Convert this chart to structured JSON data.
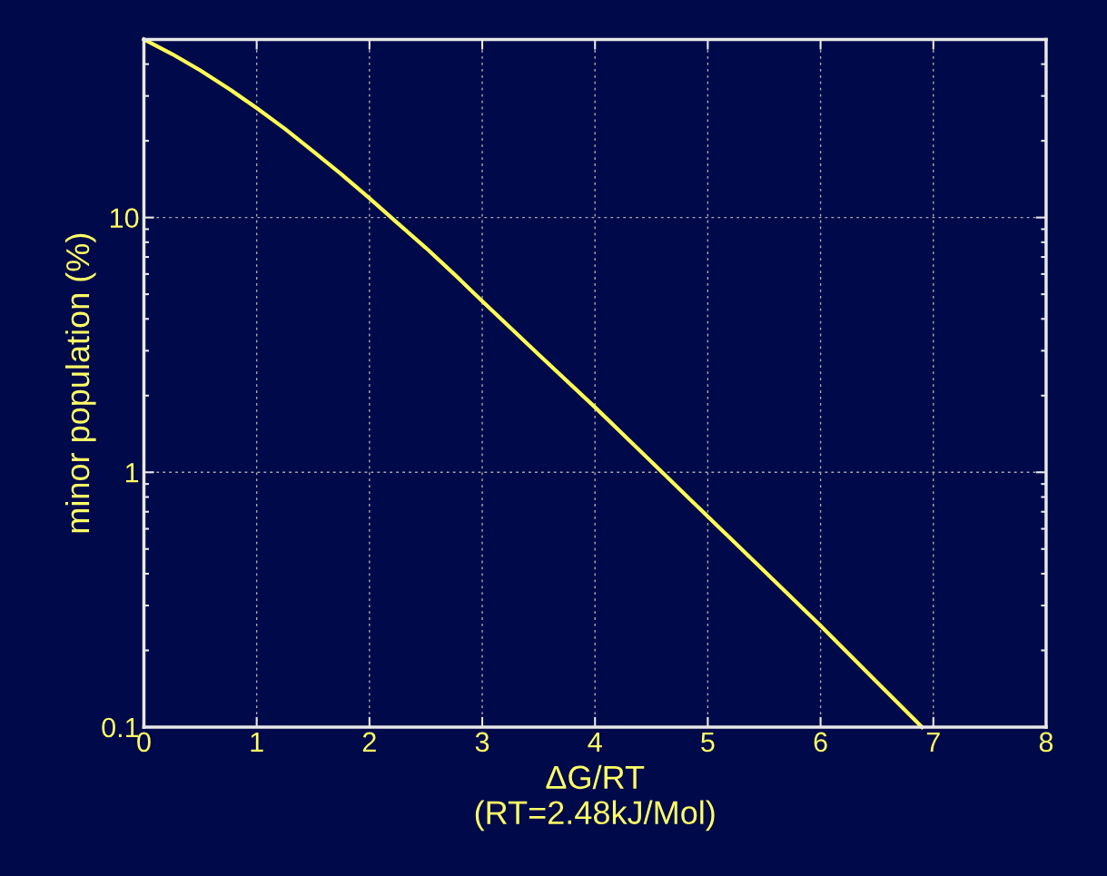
{
  "chart_data": {
    "type": "line",
    "xlabel": "ΔG/RT\n(RT=2.48kJ/Mol)",
    "ylabel": "minor population (%)",
    "x": [
      0,
      0.25,
      0.5,
      0.75,
      1,
      1.25,
      1.5,
      1.75,
      2,
      2.25,
      2.5,
      2.75,
      3,
      3.5,
      4,
      4.5,
      5,
      5.5,
      6,
      6.5,
      6.9
    ],
    "series": [
      {
        "color": "#ffff55",
        "values": [
          50,
          43.8,
          37.8,
          32.1,
          26.9,
          22.3,
          18.2,
          14.8,
          11.9,
          9.5,
          7.6,
          6.0,
          4.7,
          2.9,
          1.8,
          1.1,
          0.67,
          0.41,
          0.25,
          0.15,
          0.1
        ]
      }
    ],
    "log": "y",
    "xlim": [
      0,
      8
    ],
    "ylim": [
      0.1,
      50
    ],
    "xticks": [
      0,
      1,
      2,
      3,
      4,
      5,
      6,
      7,
      8
    ],
    "yticks": [
      0.1,
      1,
      10
    ],
    "grid": true,
    "line_style": "solid",
    "marker": "none"
  }
}
